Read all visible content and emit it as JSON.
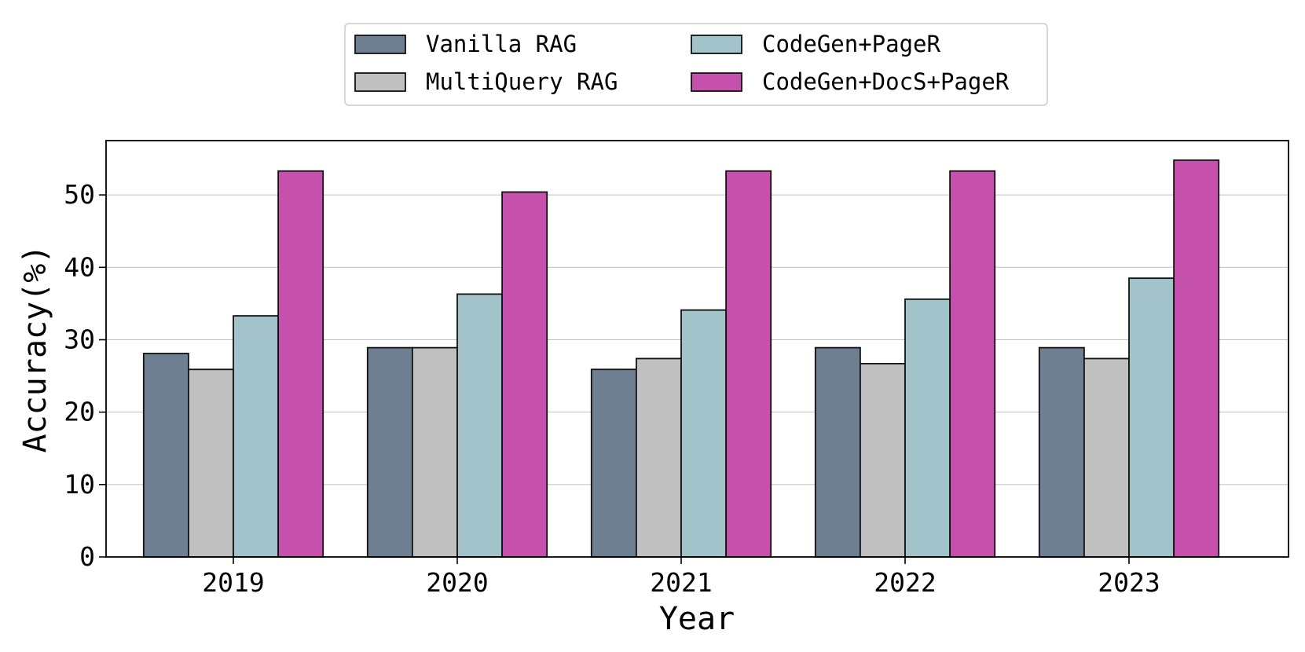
{
  "chart_data": {
    "type": "bar",
    "title": "",
    "xlabel": "Year",
    "ylabel": "Accuracy(%)",
    "categories": [
      "2019",
      "2020",
      "2021",
      "2022",
      "2023"
    ],
    "ylim": [
      0,
      57.5
    ],
    "yticks": [
      "0",
      "10",
      "20",
      "30",
      "40",
      "50"
    ],
    "grid": "horizontal",
    "legend_position": "top-center",
    "series": [
      {
        "name": "Vanilla RAG",
        "color": "#6e7f91",
        "values": [
          28.1,
          28.9,
          25.9,
          28.9,
          28.9
        ]
      },
      {
        "name": "MultiQuery RAG",
        "color": "#c0c0c0",
        "values": [
          25.9,
          28.9,
          27.4,
          26.7,
          27.4
        ]
      },
      {
        "name": "CodeGen+PageR",
        "color": "#a1c3c9",
        "values": [
          33.3,
          36.3,
          34.1,
          35.6,
          38.5
        ]
      },
      {
        "name": "CodeGen+DocS+PageR",
        "color": "#c651ac",
        "values": [
          53.3,
          50.4,
          53.3,
          53.3,
          54.8
        ]
      }
    ]
  }
}
